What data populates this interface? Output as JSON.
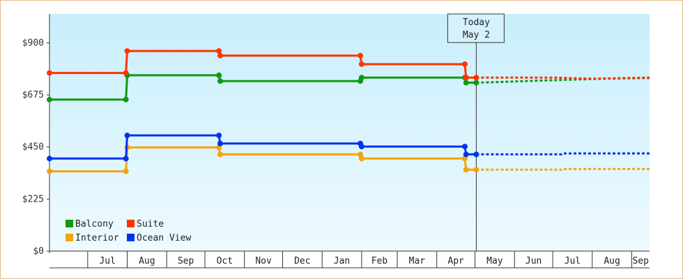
{
  "chart_data": {
    "type": "line",
    "step": true,
    "ylim": [
      0,
      1025
    ],
    "y_ticks": [
      {
        "value": 0,
        "label": "$0"
      },
      {
        "value": 225,
        "label": "$225"
      },
      {
        "value": 450,
        "label": "$450"
      },
      {
        "value": 675,
        "label": "$675"
      },
      {
        "value": 900,
        "label": "$900"
      }
    ],
    "x_start": "2018-06-01",
    "x_end": "2019-09-15",
    "months": [
      {
        "label": "Jul",
        "start": "2018-07-01",
        "end": "2018-08-01"
      },
      {
        "label": "Aug",
        "start": "2018-08-01",
        "end": "2018-09-01"
      },
      {
        "label": "Sep",
        "start": "2018-09-01",
        "end": "2018-10-01"
      },
      {
        "label": "Oct",
        "start": "2018-10-01",
        "end": "2018-11-01"
      },
      {
        "label": "Nov",
        "start": "2018-11-01",
        "end": "2018-12-01"
      },
      {
        "label": "Dec",
        "start": "2018-12-01",
        "end": "2019-01-01"
      },
      {
        "label": "Jan",
        "start": "2019-01-01",
        "end": "2019-02-01"
      },
      {
        "label": "Feb",
        "start": "2019-02-01",
        "end": "2019-03-01"
      },
      {
        "label": "Mar",
        "start": "2019-03-01",
        "end": "2019-04-01"
      },
      {
        "label": "Apr",
        "start": "2019-04-01",
        "end": "2019-05-01"
      },
      {
        "label": "May",
        "start": "2019-05-01",
        "end": "2019-06-01"
      },
      {
        "label": "Jun",
        "start": "2019-06-01",
        "end": "2019-07-01"
      },
      {
        "label": "Jul",
        "start": "2019-07-01",
        "end": "2019-08-01"
      },
      {
        "label": "Aug",
        "start": "2019-08-01",
        "end": "2019-09-01"
      },
      {
        "label": "Sep",
        "start": "2019-09-01",
        "end": "2019-10-01"
      }
    ],
    "today": {
      "date": "2019-05-02",
      "line1": "Today",
      "line2": "May 2"
    },
    "series": [
      {
        "name": "Balcony",
        "color": "#119911",
        "points": [
          {
            "date": "2018-06-01",
            "value": 655
          },
          {
            "date": "2018-07-31",
            "value": 655
          },
          {
            "date": "2018-08-01",
            "value": 760
          },
          {
            "date": "2018-10-12",
            "value": 760
          },
          {
            "date": "2018-10-13",
            "value": 735
          },
          {
            "date": "2019-01-31",
            "value": 735
          },
          {
            "date": "2019-02-01",
            "value": 750
          },
          {
            "date": "2019-04-23",
            "value": 750
          },
          {
            "date": "2019-04-24",
            "value": 728
          },
          {
            "date": "2019-05-02",
            "value": 728
          }
        ],
        "forecast": [
          {
            "date": "2019-05-02",
            "value": 728
          },
          {
            "date": "2019-05-15",
            "value": 730
          },
          {
            "date": "2019-06-10",
            "value": 735
          },
          {
            "date": "2019-07-10",
            "value": 740
          },
          {
            "date": "2019-08-10",
            "value": 745
          },
          {
            "date": "2019-09-15",
            "value": 748
          }
        ]
      },
      {
        "name": "Suite",
        "color": "#ff3300",
        "points": [
          {
            "date": "2018-06-01",
            "value": 770
          },
          {
            "date": "2018-07-31",
            "value": 770
          },
          {
            "date": "2018-08-01",
            "value": 865
          },
          {
            "date": "2018-10-12",
            "value": 865
          },
          {
            "date": "2018-10-13",
            "value": 845
          },
          {
            "date": "2019-01-31",
            "value": 845
          },
          {
            "date": "2019-02-01",
            "value": 808
          },
          {
            "date": "2019-04-23",
            "value": 808
          },
          {
            "date": "2019-04-24",
            "value": 750
          },
          {
            "date": "2019-05-02",
            "value": 750
          }
        ],
        "forecast": [
          {
            "date": "2019-05-02",
            "value": 750
          },
          {
            "date": "2019-07-01",
            "value": 750
          },
          {
            "date": "2019-08-01",
            "value": 745
          },
          {
            "date": "2019-09-15",
            "value": 750
          }
        ]
      },
      {
        "name": "Interior",
        "color": "#f5a30a",
        "points": [
          {
            "date": "2018-06-01",
            "value": 345
          },
          {
            "date": "2018-07-31",
            "value": 345
          },
          {
            "date": "2018-08-01",
            "value": 448
          },
          {
            "date": "2018-10-12",
            "value": 448
          },
          {
            "date": "2018-10-13",
            "value": 418
          },
          {
            "date": "2019-01-31",
            "value": 418
          },
          {
            "date": "2019-02-01",
            "value": 400
          },
          {
            "date": "2019-04-23",
            "value": 400
          },
          {
            "date": "2019-04-24",
            "value": 352
          },
          {
            "date": "2019-05-02",
            "value": 352
          }
        ],
        "forecast": [
          {
            "date": "2019-05-02",
            "value": 352
          },
          {
            "date": "2019-07-08",
            "value": 352
          },
          {
            "date": "2019-07-09",
            "value": 355
          },
          {
            "date": "2019-09-15",
            "value": 355
          }
        ]
      },
      {
        "name": "Ocean View",
        "color": "#0033ee",
        "points": [
          {
            "date": "2018-06-01",
            "value": 400
          },
          {
            "date": "2018-07-31",
            "value": 400
          },
          {
            "date": "2018-08-01",
            "value": 500
          },
          {
            "date": "2018-10-12",
            "value": 500
          },
          {
            "date": "2018-10-13",
            "value": 465
          },
          {
            "date": "2019-01-31",
            "value": 465
          },
          {
            "date": "2019-02-01",
            "value": 452
          },
          {
            "date": "2019-04-23",
            "value": 452
          },
          {
            "date": "2019-04-24",
            "value": 418
          },
          {
            "date": "2019-05-02",
            "value": 418
          }
        ],
        "forecast": [
          {
            "date": "2019-05-02",
            "value": 418
          },
          {
            "date": "2019-07-08",
            "value": 418
          },
          {
            "date": "2019-07-09",
            "value": 422
          },
          {
            "date": "2019-09-15",
            "value": 422
          }
        ]
      }
    ],
    "legend": {
      "placement": "bottom-left",
      "items": [
        {
          "name": "Balcony",
          "color": "#119911"
        },
        {
          "name": "Suite",
          "color": "#ff3300"
        },
        {
          "name": "Interior",
          "color": "#f5a30a"
        },
        {
          "name": "Ocean View",
          "color": "#0033ee"
        }
      ]
    },
    "background_top": "#c8eefc",
    "background_bottom": "#eefaff",
    "grid": false
  }
}
